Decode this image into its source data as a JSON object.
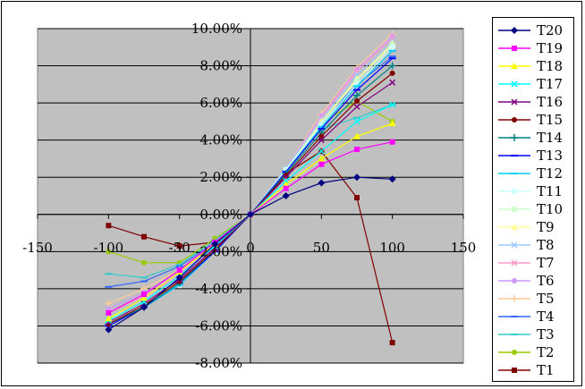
{
  "chart_data": {
    "type": "line",
    "x": [
      -100,
      -75,
      -50,
      -25,
      0,
      25,
      50,
      75,
      100
    ],
    "xlim": [
      -150,
      150
    ],
    "ylim": [
      -8,
      10
    ],
    "xticks": [
      -150,
      -100,
      -50,
      0,
      50,
      100,
      150
    ],
    "yticks": [
      -8,
      -6,
      -4,
      -2,
      0,
      2,
      4,
      6,
      8,
      10
    ],
    "xtick_labels": [
      "-150",
      "-100",
      "-50",
      "0",
      "50",
      "100",
      "150"
    ],
    "ytick_labels": [
      "-8.00%",
      "-6.00%",
      "-4.00%",
      "-2.00%",
      "0.00%",
      "2.00%",
      "4.00%",
      "6.00%",
      "8.00%",
      "10.00%"
    ],
    "grid": "horizontal",
    "legend_position": "right",
    "plot_background": "#c0c0c0",
    "series": [
      {
        "name": "T20",
        "color": "#000080",
        "marker": "diamond",
        "values": [
          -6.2,
          -5.0,
          -3.4,
          -1.6,
          0,
          1.0,
          1.7,
          2.0,
          1.9
        ]
      },
      {
        "name": "T19",
        "color": "#ff00ff",
        "marker": "square",
        "values": [
          -5.3,
          -4.3,
          -3.0,
          -1.5,
          0,
          1.4,
          2.7,
          3.5,
          3.9
        ]
      },
      {
        "name": "T18",
        "color": "#ffff00",
        "marker": "triangle",
        "values": [
          -5.6,
          -4.5,
          -3.1,
          -1.6,
          0,
          1.6,
          3.0,
          4.2,
          4.9
        ]
      },
      {
        "name": "T17",
        "color": "#00ffff",
        "marker": "x",
        "values": [
          -5.7,
          -4.7,
          -3.3,
          -1.7,
          0,
          1.8,
          3.4,
          5.0,
          5.9
        ]
      },
      {
        "name": "T16",
        "color": "#800080",
        "marker": "x",
        "values": [
          -5.8,
          -4.8,
          -3.5,
          -1.8,
          0,
          2.0,
          4.0,
          5.8,
          7.1
        ]
      },
      {
        "name": "T15",
        "color": "#800000",
        "marker": "circle",
        "values": [
          -5.9,
          -4.9,
          -3.6,
          -1.9,
          0,
          2.1,
          4.2,
          6.1,
          7.6
        ]
      },
      {
        "name": "T14",
        "color": "#008080",
        "marker": "plus",
        "values": [
          -5.9,
          -5.0,
          -3.7,
          -1.9,
          0,
          2.2,
          4.4,
          6.4,
          8.0
        ]
      },
      {
        "name": "T13",
        "color": "#0000ff",
        "marker": "dash",
        "values": [
          -6.0,
          -5.0,
          -3.7,
          -2.0,
          0,
          2.3,
          4.6,
          6.7,
          8.4
        ]
      },
      {
        "name": "T12",
        "color": "#00ccff",
        "marker": "dash",
        "values": [
          -5.9,
          -5.0,
          -3.8,
          -2.0,
          0,
          2.3,
          4.7,
          6.9,
          8.8
        ]
      },
      {
        "name": "T11",
        "color": "#ccffff",
        "marker": "diamond",
        "values": [
          -5.8,
          -5.0,
          -3.8,
          -2.0,
          0,
          2.4,
          4.8,
          7.0,
          9.0
        ]
      },
      {
        "name": "T10",
        "color": "#ccffcc",
        "marker": "square",
        "values": [
          -5.7,
          -4.9,
          -3.7,
          -2.0,
          0,
          2.4,
          4.9,
          7.2,
          9.1
        ]
      },
      {
        "name": "T9",
        "color": "#ffff99",
        "marker": "triangle",
        "values": [
          -5.6,
          -4.8,
          -3.6,
          -1.9,
          0,
          2.4,
          5.0,
          7.3,
          9.2
        ]
      },
      {
        "name": "T8",
        "color": "#99ccff",
        "marker": "x",
        "values": [
          -5.5,
          -4.6,
          -3.4,
          -1.8,
          0,
          2.5,
          5.1,
          7.5,
          9.3
        ]
      },
      {
        "name": "T7",
        "color": "#ff99cc",
        "marker": "x",
        "values": [
          -5.3,
          -4.4,
          -3.3,
          -1.8,
          0,
          2.5,
          5.2,
          7.7,
          9.5
        ]
      },
      {
        "name": "T6",
        "color": "#cc99ff",
        "marker": "circle",
        "values": [
          -5.1,
          -4.2,
          -3.2,
          -1.7,
          0,
          2.5,
          5.3,
          7.8,
          9.6
        ]
      },
      {
        "name": "T5",
        "color": "#ffcc99",
        "marker": "plus",
        "values": [
          -4.8,
          -4.0,
          -3.0,
          -1.6,
          0,
          2.5,
          5.4,
          7.9,
          9.7
        ]
      },
      {
        "name": "T4",
        "color": "#3366ff",
        "marker": "dash",
        "values": [
          -3.9,
          -3.6,
          -2.8,
          -1.5,
          0,
          2.4,
          5.0,
          7.0,
          8.5
        ]
      },
      {
        "name": "T3",
        "color": "#33cccc",
        "marker": "dash",
        "values": [
          -3.2,
          -3.4,
          -2.7,
          -1.4,
          0,
          2.3,
          4.6,
          5.2,
          5.9
        ]
      },
      {
        "name": "T2",
        "color": "#99cc00",
        "marker": "circle",
        "values": [
          -2.0,
          -2.6,
          -2.6,
          -1.3,
          0,
          2.4,
          4.9,
          6.1,
          5.0
        ]
      },
      {
        "name": "T1",
        "color": "#800000",
        "marker": "square",
        "values": [
          -0.6,
          -1.2,
          -1.7,
          -1.5,
          0,
          2.2,
          3.4,
          0.9,
          -6.9
        ]
      }
    ]
  }
}
